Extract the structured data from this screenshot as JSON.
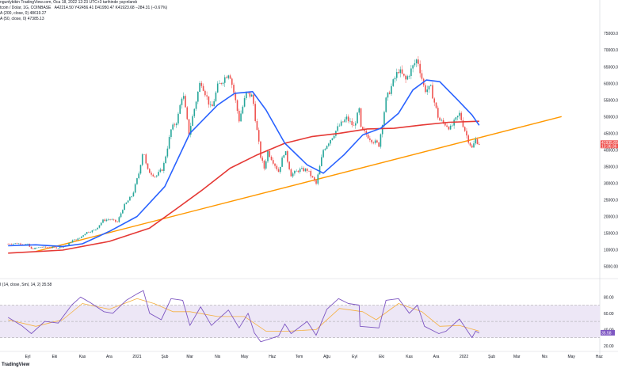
{
  "header": {
    "publisher": "ngunlybikin TradingView.com, Oca 18, 2022 12:23 UTC+3 tarihinde yayınlandı",
    "symbol": "tcoin / Dolar, 1G, COINBASE",
    "ohlc": "A42214.50 Y42456.41 D41950.47 K41923.68 −284.31 (−0.67%)",
    "ma200": "A (200, close, 0) 48619.27",
    "ma50": "A (50, close, 0) 47385.13",
    "rsi": "I (14, close, Sml, 14, 2) 35.58"
  },
  "watermark": "TradingView",
  "colors": {
    "ma50": "#2962ff",
    "ma200": "#e53935",
    "trendline": "#ff9800",
    "rsi": "#7e57c2",
    "rsi_ma": "#f5b041",
    "rsi_band": "#ede7f6",
    "up": "#26a69a",
    "down": "#ef5350",
    "last_price": "#ef5350"
  },
  "chart_data": [
    {
      "type": "candlestick",
      "x_ticks": [
        "Eyl",
        "Eki",
        "Kas",
        "Ara",
        "2021",
        "Şub",
        "Mar",
        "Nis",
        "May",
        "Haz",
        "Tem",
        "Ağu",
        "Eyl",
        "Eki",
        "Kas",
        "Ara",
        "2022",
        "Şub",
        "Mar",
        "Nis",
        "May",
        "Haz"
      ],
      "y_ticks": [
        "75000.00",
        "70000.00",
        "65000.00",
        "60000.00",
        "55000.00",
        "50000.00",
        "45000.00",
        "40000.00",
        "35000.00",
        "30000.00",
        "25000.00",
        "20000.00",
        "15000.00",
        "10000.00",
        "5000.00"
      ],
      "last_price_label": "41935.65",
      "last_price_sub": "13:36:36",
      "ylim": [
        3000,
        76000
      ],
      "price_path": [
        [
          "2020-08-10",
          11800
        ],
        [
          "2020-08-20",
          11900
        ],
        [
          "2020-09-01",
          11600
        ],
        [
          "2020-09-05",
          10200
        ],
        [
          "2020-09-15",
          10800
        ],
        [
          "2020-09-25",
          10700
        ],
        [
          "2020-10-05",
          10600
        ],
        [
          "2020-10-15",
          11400
        ],
        [
          "2020-10-21",
          12800
        ],
        [
          "2020-10-28",
          13300
        ],
        [
          "2020-11-05",
          15200
        ],
        [
          "2020-11-15",
          15900
        ],
        [
          "2020-11-24",
          18800
        ],
        [
          "2020-12-01",
          19200
        ],
        [
          "2020-12-10",
          18300
        ],
        [
          "2020-12-17",
          23000
        ],
        [
          "2020-12-27",
          26500
        ],
        [
          "2021-01-03",
          33000
        ],
        [
          "2021-01-08",
          40500
        ],
        [
          "2021-01-12",
          34000
        ],
        [
          "2021-01-22",
          32000
        ],
        [
          "2021-01-30",
          34500
        ],
        [
          "2021-02-08",
          46000
        ],
        [
          "2021-02-15",
          49000
        ],
        [
          "2021-02-21",
          57500
        ],
        [
          "2021-02-28",
          45000
        ],
        [
          "2021-03-13",
          61000
        ],
        [
          "2021-03-25",
          52000
        ],
        [
          "2021-04-01",
          59000
        ],
        [
          "2021-04-14",
          63500
        ],
        [
          "2021-04-20",
          56000
        ],
        [
          "2021-04-25",
          49000
        ],
        [
          "2021-05-03",
          57000
        ],
        [
          "2021-05-10",
          56000
        ],
        [
          "2021-05-13",
          49500
        ],
        [
          "2021-05-19",
          38000
        ],
        [
          "2021-05-23",
          34500
        ],
        [
          "2021-05-27",
          39500
        ],
        [
          "2021-06-08",
          33500
        ],
        [
          "2021-06-15",
          40000
        ],
        [
          "2021-06-22",
          32500
        ],
        [
          "2021-07-01",
          34000
        ],
        [
          "2021-07-10",
          34000
        ],
        [
          "2021-07-20",
          29800
        ],
        [
          "2021-07-28",
          40000
        ],
        [
          "2021-08-07",
          44000
        ],
        [
          "2021-08-14",
          47000
        ],
        [
          "2021-08-23",
          49500
        ],
        [
          "2021-08-31",
          47000
        ],
        [
          "2021-09-06",
          52000
        ],
        [
          "2021-09-07",
          46500
        ],
        [
          "2021-09-20",
          43000
        ],
        [
          "2021-09-28",
          41500
        ],
        [
          "2021-10-06",
          55000
        ],
        [
          "2021-10-15",
          61000
        ],
        [
          "2021-10-20",
          64000
        ],
        [
          "2021-10-28",
          61000
        ],
        [
          "2021-11-10",
          67500
        ],
        [
          "2021-11-18",
          58000
        ],
        [
          "2021-11-25",
          58500
        ],
        [
          "2021-12-04",
          49000
        ],
        [
          "2021-12-10",
          48000
        ],
        [
          "2021-12-17",
          46500
        ],
        [
          "2021-12-27",
          50800
        ],
        [
          "2022-01-05",
          43500
        ],
        [
          "2022-01-10",
          40500
        ],
        [
          "2022-01-14",
          43000
        ],
        [
          "2022-01-18",
          41923
        ]
      ],
      "ma50_path": [
        [
          "2020-08-10",
          11200
        ],
        [
          "2020-09-10",
          11500
        ],
        [
          "2020-10-10",
          11000
        ],
        [
          "2020-11-01",
          11800
        ],
        [
          "2020-12-01",
          15500
        ],
        [
          "2021-01-01",
          20000
        ],
        [
          "2021-02-01",
          29000
        ],
        [
          "2021-03-01",
          45000
        ],
        [
          "2021-04-01",
          53500
        ],
        [
          "2021-04-20",
          57000
        ],
        [
          "2021-05-10",
          57500
        ],
        [
          "2021-05-25",
          52000
        ],
        [
          "2021-06-15",
          42000
        ],
        [
          "2021-07-10",
          35500
        ],
        [
          "2021-07-28",
          33000
        ],
        [
          "2021-08-20",
          38500
        ],
        [
          "2021-09-10",
          44500
        ],
        [
          "2021-09-30",
          46500
        ],
        [
          "2021-10-20",
          51000
        ],
        [
          "2021-11-05",
          58000
        ],
        [
          "2021-11-20",
          61000
        ],
        [
          "2021-12-05",
          60500
        ],
        [
          "2021-12-25",
          55000
        ],
        [
          "2022-01-10",
          50500
        ],
        [
          "2022-01-18",
          47385
        ]
      ],
      "ma200_path": [
        [
          "2020-08-10",
          9000
        ],
        [
          "2020-10-10",
          9900
        ],
        [
          "2020-12-01",
          12500
        ],
        [
          "2021-01-15",
          16500
        ],
        [
          "2021-02-15",
          22500
        ],
        [
          "2021-03-15",
          28000
        ],
        [
          "2021-04-15",
          34500
        ],
        [
          "2021-05-15",
          38500
        ],
        [
          "2021-06-15",
          42000
        ],
        [
          "2021-07-15",
          44000
        ],
        [
          "2021-08-15",
          45000
        ],
        [
          "2021-09-15",
          46300
        ],
        [
          "2021-10-15",
          46500
        ],
        [
          "2021-11-15",
          47500
        ],
        [
          "2021-12-15",
          48300
        ],
        [
          "2022-01-18",
          48619
        ]
      ],
      "trendline": [
        [
          "2020-09-10",
          9500
        ],
        [
          "2022-04-20",
          50000
        ]
      ]
    },
    {
      "type": "line",
      "name": "RSI",
      "y_ticks": [
        "80.00",
        "60.00",
        "40.00",
        "20.00"
      ],
      "band": [
        30,
        70
      ],
      "midline": 50,
      "ylim": [
        17,
        90
      ],
      "last_value_label": "35.58",
      "rsi_path": [
        [
          "2020-08-10",
          55
        ],
        [
          "2020-08-25",
          45
        ],
        [
          "2020-09-05",
          35
        ],
        [
          "2020-09-20",
          50
        ],
        [
          "2020-10-05",
          48
        ],
        [
          "2020-10-20",
          70
        ],
        [
          "2020-10-30",
          80
        ],
        [
          "2020-11-10",
          73
        ],
        [
          "2020-11-25",
          62
        ],
        [
          "2020-12-05",
          60
        ],
        [
          "2020-12-20",
          76
        ],
        [
          "2021-01-01",
          84
        ],
        [
          "2021-01-08",
          88
        ],
        [
          "2021-01-15",
          60
        ],
        [
          "2021-01-28",
          52
        ],
        [
          "2021-02-08",
          78
        ],
        [
          "2021-02-21",
          76
        ],
        [
          "2021-03-01",
          45
        ],
        [
          "2021-03-13",
          68
        ],
        [
          "2021-03-25",
          45
        ],
        [
          "2021-04-13",
          64
        ],
        [
          "2021-04-25",
          42
        ],
        [
          "2021-05-05",
          60
        ],
        [
          "2021-05-12",
          36
        ],
        [
          "2021-05-19",
          25
        ],
        [
          "2021-06-08",
          32
        ],
        [
          "2021-06-15",
          47
        ],
        [
          "2021-06-22",
          35
        ],
        [
          "2021-07-10",
          50
        ],
        [
          "2021-07-20",
          33
        ],
        [
          "2021-08-01",
          65
        ],
        [
          "2021-08-14",
          78
        ],
        [
          "2021-08-25",
          72
        ],
        [
          "2021-09-06",
          70
        ],
        [
          "2021-09-07",
          44
        ],
        [
          "2021-09-28",
          42
        ],
        [
          "2021-10-06",
          76
        ],
        [
          "2021-10-20",
          78
        ],
        [
          "2021-11-01",
          60
        ],
        [
          "2021-11-10",
          70
        ],
        [
          "2021-11-18",
          44
        ],
        [
          "2021-12-04",
          35
        ],
        [
          "2021-12-12",
          38
        ],
        [
          "2021-12-27",
          53
        ],
        [
          "2022-01-10",
          30
        ],
        [
          "2022-01-14",
          38
        ],
        [
          "2022-01-18",
          35.58
        ]
      ],
      "rsi_ma_path": [
        [
          "2020-08-10",
          52
        ],
        [
          "2020-09-10",
          44
        ],
        [
          "2020-10-10",
          52
        ],
        [
          "2020-11-01",
          72
        ],
        [
          "2020-12-01",
          65
        ],
        [
          "2021-01-01",
          78
        ],
        [
          "2021-01-20",
          72
        ],
        [
          "2021-02-10",
          62
        ],
        [
          "2021-03-01",
          62
        ],
        [
          "2021-04-01",
          56
        ],
        [
          "2021-05-01",
          56
        ],
        [
          "2021-05-25",
          38
        ],
        [
          "2021-06-20",
          38
        ],
        [
          "2021-07-20",
          40
        ],
        [
          "2021-08-15",
          66
        ],
        [
          "2021-09-10",
          62
        ],
        [
          "2021-09-25",
          52
        ],
        [
          "2021-10-20",
          72
        ],
        [
          "2021-11-15",
          62
        ],
        [
          "2021-12-05",
          44
        ],
        [
          "2021-12-27",
          45
        ],
        [
          "2022-01-18",
          38
        ]
      ]
    }
  ]
}
